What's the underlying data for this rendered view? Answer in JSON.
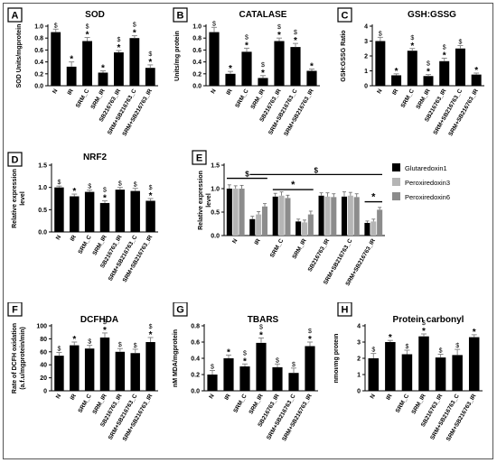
{
  "colors": {
    "bar": "#000000",
    "error": "#8a8a8a",
    "mark": "#000000",
    "series2": "#b5b5b5",
    "series3": "#8c8c8c"
  },
  "chart_data": [
    {
      "panel": "A",
      "type": "bar",
      "title": "SOD",
      "ylabel": "SOD Units/mgprotein",
      "categories": [
        "N",
        "IR",
        "SRM_C",
        "SRM_IR",
        "SB216763_IR",
        "SRM+SB216763_C",
        "SRM+SB216763_IR"
      ],
      "values": [
        0.9,
        0.32,
        0.75,
        0.22,
        0.56,
        0.8,
        0.3
      ],
      "errors": [
        0.05,
        0.08,
        0.06,
        0.03,
        0.03,
        0.04,
        0.05
      ],
      "marks": [
        "$",
        "*",
        "$*",
        "*",
        "$*",
        "$*",
        "$*"
      ],
      "ylim": [
        0,
        1.0
      ],
      "yticks": [
        0,
        0.2,
        0.4,
        0.6,
        0.8,
        1.0
      ],
      "ytick_labels": [
        "0.0",
        "0.2",
        "0.4",
        "0.6",
        "0.8",
        "1.0"
      ]
    },
    {
      "panel": "B",
      "type": "bar",
      "title": "CATALASE",
      "ylabel": "Units/mg protein",
      "categories": [
        "N",
        "IR",
        "SRM_C",
        "SRM_IR",
        "SB216763_IR",
        "SRM+SB216763_C",
        "SRM+SB216763_IR"
      ],
      "values": [
        0.9,
        0.2,
        0.57,
        0.13,
        0.75,
        0.65,
        0.25
      ],
      "errors": [
        0.08,
        0.04,
        0.06,
        0.04,
        0.05,
        0.06,
        0.03
      ],
      "marks": [
        "$",
        "*",
        "$*",
        "$*",
        "$*",
        "$*",
        "*"
      ],
      "ylim": [
        0,
        1.0
      ],
      "yticks": [
        0,
        0.2,
        0.4,
        0.6,
        0.8,
        1.0
      ],
      "ytick_labels": [
        "0.0",
        "0.2",
        "0.4",
        "0.6",
        "0.8",
        "1.0"
      ]
    },
    {
      "panel": "C",
      "type": "bar",
      "title": "GSH:GSSG",
      "ylabel": "GSH:GSSG Ratio",
      "categories": [
        "N",
        "IR",
        "SRM_C",
        "SRM_IR",
        "SB216763_IR",
        "SRM+SB216763_C",
        "SRM+SB216763_IR"
      ],
      "values": [
        3.0,
        0.7,
        2.35,
        0.65,
        1.65,
        2.5,
        0.75
      ],
      "errors": [
        0.25,
        0.1,
        0.15,
        0.1,
        0.2,
        0.2,
        0.1
      ],
      "marks": [
        "$",
        "*",
        "$*",
        "$*",
        "$*",
        "$",
        "*"
      ],
      "ylim": [
        0,
        4
      ],
      "yticks": [
        0,
        1,
        2,
        3,
        4
      ],
      "ytick_labels": [
        "0",
        "1",
        "2",
        "3",
        "4"
      ]
    },
    {
      "panel": "D",
      "type": "bar",
      "title": "NRF2",
      "ylabel": "Relative expression level",
      "ylabel_lines": [
        "Relative expression",
        "level"
      ],
      "categories": [
        "N",
        "IR",
        "SRM_C",
        "SRM_IR",
        "SB216763_IR",
        "SRM+SB216763_C",
        "SRM+SB216763_IR"
      ],
      "values": [
        1.0,
        0.8,
        0.9,
        0.65,
        0.95,
        0.92,
        0.7
      ],
      "errors": [
        0.03,
        0.05,
        0.04,
        0.05,
        0.05,
        0.06,
        0.05
      ],
      "marks": [
        "$",
        "*",
        "$",
        "$*",
        "$",
        "$",
        "$*"
      ],
      "ylim": [
        0,
        1.5
      ],
      "yticks": [
        0,
        0.5,
        1.0,
        1.5
      ],
      "ytick_labels": [
        "0.0",
        "0.5",
        "1.0",
        "1.5"
      ]
    },
    {
      "panel": "E",
      "type": "bar",
      "ylabel": "Relative expression level",
      "ylabel_lines": [
        "Relative expression",
        "level"
      ],
      "categories": [
        "N",
        "IR",
        "SRM_C",
        "SRM_IR",
        "SB216763_IR",
        "SRM+SB216763_C",
        "SRM+SB216763_IR"
      ],
      "series": [
        {
          "name": "Glutaredoxin1",
          "values": [
            1.0,
            0.35,
            0.83,
            0.3,
            0.85,
            0.83,
            0.27
          ],
          "errors": [
            0.08,
            0.06,
            0.07,
            0.05,
            0.06,
            0.1,
            0.04
          ]
        },
        {
          "name": "Peroxiredoxin3",
          "values": [
            1.0,
            0.45,
            0.85,
            0.28,
            0.83,
            0.85,
            0.3
          ],
          "errors": [
            0.06,
            0.06,
            0.08,
            0.05,
            0.08,
            0.07,
            0.05
          ]
        },
        {
          "name": "Peroxiredoxin6",
          "values": [
            1.0,
            0.62,
            0.8,
            0.45,
            0.82,
            0.82,
            0.55
          ],
          "errors": [
            0.07,
            0.06,
            0.06,
            0.07,
            0.07,
            0.07,
            0.05
          ]
        }
      ],
      "brackets": [
        {
          "from": 0,
          "to": 1,
          "y": 1.22,
          "label": "$"
        },
        {
          "from": 1,
          "to": 6,
          "y": 1.3,
          "label": "$"
        },
        {
          "from": 2,
          "to": 3,
          "y": 0.98,
          "label": "*"
        },
        {
          "from": 6,
          "to": 6,
          "y": 0.72,
          "label": "*"
        }
      ],
      "ylim": [
        0,
        1.5
      ],
      "yticks": [
        0,
        0.5,
        1.0,
        1.5
      ],
      "ytick_labels": [
        "0.0",
        "0.5",
        "1.0",
        "1.5"
      ],
      "legend_position": "right"
    },
    {
      "panel": "F",
      "type": "bar",
      "title": "DCFHDA",
      "ylabel": "Rate of DCFH oxidation (a.f.u/mgprotein/min)",
      "ylabel_lines": [
        "Rate of DCFH oxidation",
        "(a.f.u/mgprotein/min)"
      ],
      "categories": [
        "N",
        "IR",
        "SRM_C",
        "SRM_IR",
        "SB216763_IR",
        "SRM+SB216763_C",
        "SRM+SB216763_IR"
      ],
      "values": [
        54,
        70,
        65,
        82,
        60,
        58,
        75
      ],
      "errors": [
        5,
        5,
        5,
        7,
        5,
        6,
        7
      ],
      "marks": [
        "$",
        "*",
        "$",
        "$*",
        "$",
        "$",
        "$*"
      ],
      "ylim": [
        0,
        100
      ],
      "yticks": [
        0,
        20,
        40,
        60,
        80,
        100
      ],
      "ytick_labels": [
        "0",
        "20",
        "40",
        "60",
        "80",
        "100"
      ]
    },
    {
      "panel": "G",
      "type": "bar",
      "title": "TBARS",
      "ylabel": "nM MDA/mgprotein",
      "categories": [
        "N",
        "IR",
        "SRM_C",
        "SRM_IR",
        "SB216763_IR",
        "SRM+SB216763_C",
        "SRM+SB216763_IR"
      ],
      "values": [
        0.2,
        0.4,
        0.3,
        0.59,
        0.29,
        0.22,
        0.55
      ],
      "errors": [
        0.05,
        0.04,
        0.03,
        0.06,
        0.04,
        0.06,
        0.05
      ],
      "marks": [
        "$",
        "*",
        "$*",
        "$*",
        "$",
        "$",
        "$*"
      ],
      "ylim": [
        0,
        0.8
      ],
      "yticks": [
        0,
        0.2,
        0.4,
        0.6,
        0.8
      ],
      "ytick_labels": [
        "0.0",
        "0.2",
        "0.4",
        "0.6",
        "0.8"
      ]
    },
    {
      "panel": "H",
      "type": "bar",
      "title": "Protein carbonyl",
      "ylabel": "nmol/mg protein",
      "categories": [
        "N",
        "IR",
        "SRM_C",
        "SRM_IR",
        "SB216763_IR",
        "SRM+SB216763_C",
        "SRM+SB216763_IR"
      ],
      "values": [
        2.0,
        3.0,
        2.25,
        3.35,
        2.05,
        2.2,
        3.3
      ],
      "errors": [
        0.3,
        0.1,
        0.25,
        0.15,
        0.2,
        0.35,
        0.15
      ],
      "marks": [
        "$",
        "*",
        "$",
        "$*",
        "$",
        "$",
        "*"
      ],
      "ylim": [
        0,
        4
      ],
      "yticks": [
        0,
        1,
        2,
        3,
        4
      ],
      "ytick_labels": [
        "0",
        "1",
        "2",
        "3",
        "4"
      ]
    }
  ]
}
